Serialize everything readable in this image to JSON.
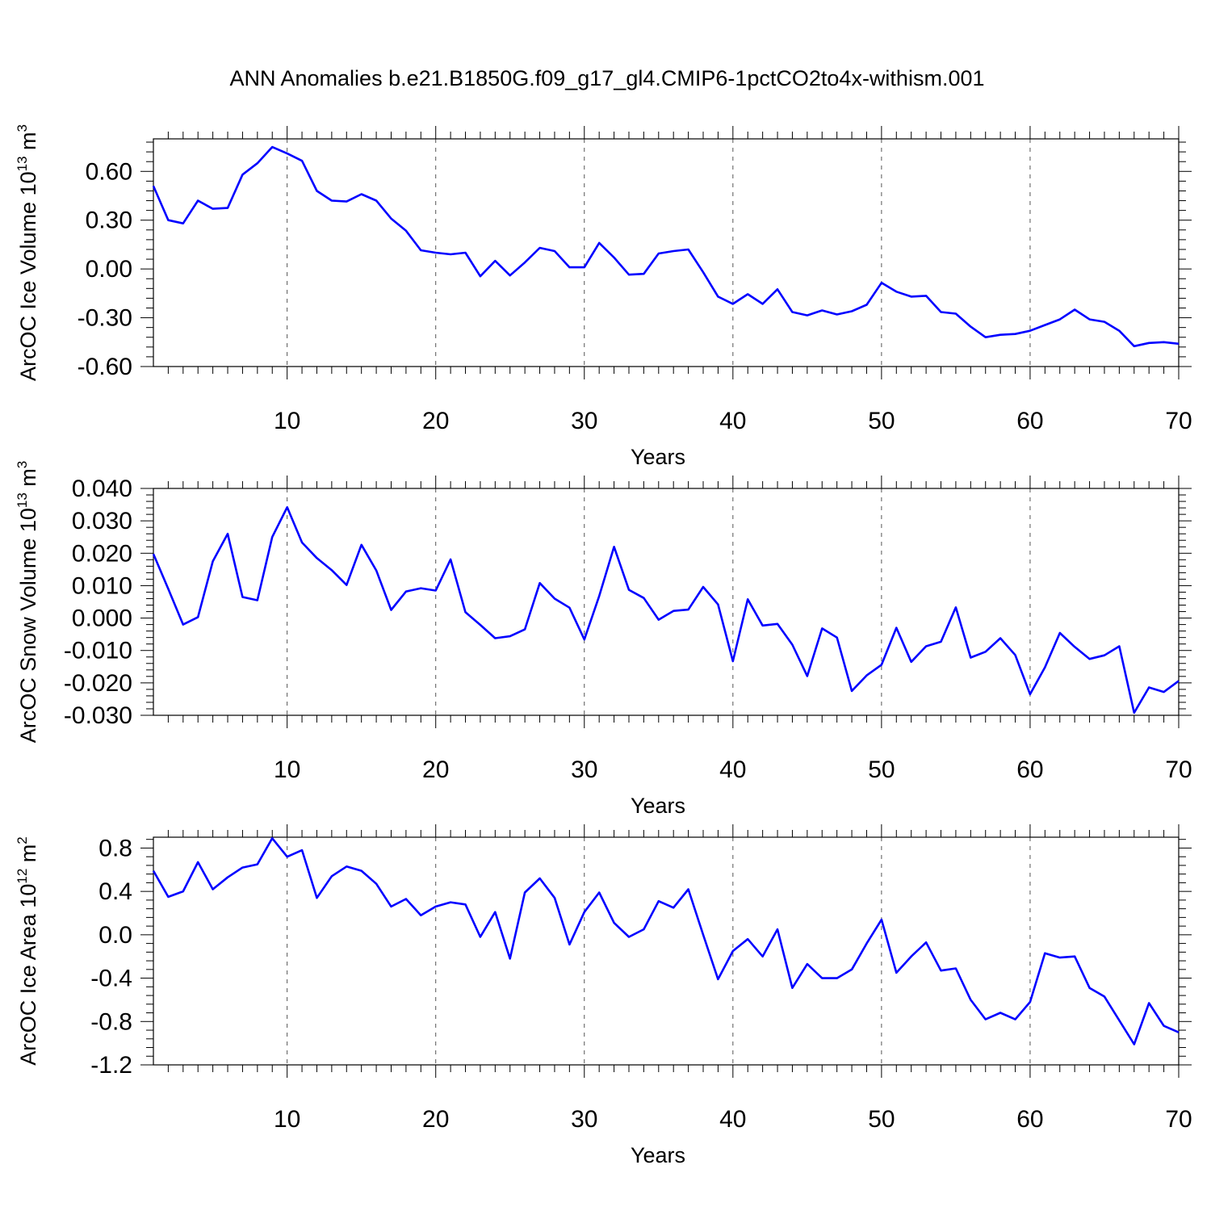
{
  "figure_title": "ANN Anomalies b.e21.B1850G.f09_g17_gl4.CMIP6-1pctCO2to4x-withism.001",
  "colors": {
    "series": "#0000ff",
    "grid": "#555555"
  },
  "chart_data": [
    {
      "type": "line",
      "xlabel": "Years",
      "ylabel": {
        "text": "ArcOC Ice Volume 10",
        "sup": "13",
        "unit": " m",
        "unit_sup": "3"
      },
      "xlim": [
        1,
        70
      ],
      "ylim": [
        -0.6,
        0.8
      ],
      "xticks": [
        10,
        20,
        30,
        40,
        50,
        60,
        70
      ],
      "yticks": [
        -0.6,
        -0.3,
        0.0,
        0.3,
        0.6
      ],
      "ytick_labels": [
        "-0.60",
        "-0.30",
        "0.00",
        "0.30",
        "0.60"
      ],
      "grid": "vertical dashed at major x ticks",
      "x": [
        1,
        2,
        3,
        4,
        5,
        6,
        7,
        8,
        9,
        10,
        11,
        12,
        13,
        14,
        15,
        16,
        17,
        18,
        19,
        20,
        21,
        22,
        23,
        24,
        25,
        26,
        27,
        28,
        29,
        30,
        31,
        32,
        33,
        34,
        35,
        36,
        37,
        38,
        39,
        40,
        41,
        42,
        43,
        44,
        45,
        46,
        47,
        48,
        49,
        50,
        51,
        52,
        53,
        54,
        55,
        56,
        57,
        58,
        59,
        60,
        61,
        62,
        63,
        64,
        65,
        66,
        67,
        68,
        69,
        70
      ],
      "series": [
        {
          "values": [
            0.51,
            0.3,
            0.28,
            0.42,
            0.37,
            0.375,
            0.58,
            0.65,
            0.75,
            0.71,
            0.665,
            0.48,
            0.42,
            0.415,
            0.46,
            0.42,
            0.31,
            0.235,
            0.115,
            0.1,
            0.09,
            0.1,
            -0.045,
            0.05,
            -0.04,
            0.04,
            0.13,
            0.11,
            0.01,
            0.01,
            0.16,
            0.07,
            -0.035,
            -0.03,
            0.095,
            0.11,
            0.12,
            -0.02,
            -0.17,
            -0.215,
            -0.155,
            -0.215,
            -0.125,
            -0.265,
            -0.285,
            -0.255,
            -0.28,
            -0.26,
            -0.22,
            -0.085,
            -0.14,
            -0.17,
            -0.165,
            -0.265,
            -0.275,
            -0.355,
            -0.42,
            -0.405,
            -0.4,
            -0.38,
            -0.345,
            -0.31,
            -0.25,
            -0.31,
            -0.325,
            -0.38,
            -0.475,
            -0.455,
            -0.45,
            -0.46
          ]
        }
      ]
    },
    {
      "type": "line",
      "xlabel": "Years",
      "ylabel": {
        "text": "ArcOC Snow Volume 10",
        "sup": "13",
        "unit": " m",
        "unit_sup": "3"
      },
      "xlim": [
        1,
        70
      ],
      "ylim": [
        -0.03,
        0.04
      ],
      "xticks": [
        10,
        20,
        30,
        40,
        50,
        60,
        70
      ],
      "yticks": [
        -0.03,
        -0.02,
        -0.01,
        0.0,
        0.01,
        0.02,
        0.03,
        0.04
      ],
      "ytick_labels": [
        "-0.030",
        "-0.020",
        "-0.010",
        "0.000",
        "0.010",
        "0.020",
        "0.030",
        "0.040"
      ],
      "grid": "vertical dashed at major x ticks",
      "x": [
        1,
        2,
        3,
        4,
        5,
        6,
        7,
        8,
        9,
        10,
        11,
        12,
        13,
        14,
        15,
        16,
        17,
        18,
        19,
        20,
        21,
        22,
        23,
        24,
        25,
        26,
        27,
        28,
        29,
        30,
        31,
        32,
        33,
        34,
        35,
        36,
        37,
        38,
        39,
        40,
        41,
        42,
        43,
        44,
        45,
        46,
        47,
        48,
        49,
        50,
        51,
        52,
        53,
        54,
        55,
        56,
        57,
        58,
        59,
        60,
        61,
        62,
        63,
        64,
        65,
        66,
        67,
        68,
        69,
        70
      ],
      "series": [
        {
          "values": [
            0.0198,
            0.009,
            -0.002,
            0.0003,
            0.0175,
            0.026,
            0.0065,
            0.0055,
            0.025,
            0.0342,
            0.0233,
            0.0185,
            0.0148,
            0.0102,
            0.0226,
            0.0147,
            0.0025,
            0.0082,
            0.0092,
            0.0085,
            0.0181,
            0.0018,
            -0.0021,
            -0.0062,
            -0.0056,
            -0.0035,
            0.0108,
            0.006,
            0.0032,
            -0.0066,
            0.0068,
            0.022,
            0.0087,
            0.0062,
            -0.0005,
            0.0022,
            0.0026,
            0.0096,
            0.0042,
            -0.0133,
            0.0058,
            -0.0023,
            -0.0018,
            -0.0082,
            -0.0179,
            -0.0032,
            -0.006,
            -0.0225,
            -0.0177,
            -0.0144,
            -0.003,
            -0.0135,
            -0.0087,
            -0.0073,
            0.0033,
            -0.0122,
            -0.0104,
            -0.0062,
            -0.0114,
            -0.0235,
            -0.0152,
            -0.0046,
            -0.0089,
            -0.0126,
            -0.0115,
            -0.0087,
            -0.0292,
            -0.0214,
            -0.0228,
            -0.0194
          ]
        }
      ]
    },
    {
      "type": "line",
      "xlabel": "Years",
      "ylabel": {
        "text": "ArcOC Ice Area 10",
        "sup": "12",
        "unit": " m",
        "unit_sup": "2"
      },
      "xlim": [
        1,
        70
      ],
      "ylim": [
        -1.2,
        0.9
      ],
      "xticks": [
        10,
        20,
        30,
        40,
        50,
        60,
        70
      ],
      "yticks": [
        -1.2,
        -0.8,
        -0.4,
        0.0,
        0.4,
        0.8
      ],
      "ytick_labels": [
        "-1.2",
        "-0.8",
        "-0.4",
        "0.0",
        "0.4",
        "0.8"
      ],
      "grid": "vertical dashed at major x ticks",
      "x": [
        1,
        2,
        3,
        4,
        5,
        6,
        7,
        8,
        9,
        10,
        11,
        12,
        13,
        14,
        15,
        16,
        17,
        18,
        19,
        20,
        21,
        22,
        23,
        24,
        25,
        26,
        27,
        28,
        29,
        30,
        31,
        32,
        33,
        34,
        35,
        36,
        37,
        38,
        39,
        40,
        41,
        42,
        43,
        44,
        45,
        46,
        47,
        48,
        49,
        50,
        51,
        52,
        53,
        54,
        55,
        56,
        57,
        58,
        59,
        60,
        61,
        62,
        63,
        64,
        65,
        66,
        67,
        68,
        69,
        70
      ],
      "series": [
        {
          "values": [
            0.59,
            0.35,
            0.4,
            0.67,
            0.42,
            0.53,
            0.62,
            0.65,
            0.89,
            0.72,
            0.78,
            0.34,
            0.54,
            0.63,
            0.59,
            0.47,
            0.26,
            0.33,
            0.18,
            0.26,
            0.3,
            0.28,
            -0.02,
            0.21,
            -0.22,
            0.39,
            0.52,
            0.34,
            -0.09,
            0.21,
            0.39,
            0.11,
            -0.02,
            0.05,
            0.31,
            0.25,
            0.42,
            0.0,
            -0.41,
            -0.15,
            -0.04,
            -0.2,
            0.05,
            -0.49,
            -0.27,
            -0.4,
            -0.4,
            -0.32,
            -0.08,
            0.14,
            -0.35,
            -0.2,
            -0.07,
            -0.33,
            -0.31,
            -0.6,
            -0.78,
            -0.72,
            -0.78,
            -0.62,
            -0.17,
            -0.21,
            -0.2,
            -0.49,
            -0.57,
            -0.79,
            -1.01,
            -0.63,
            -0.84,
            -0.9
          ]
        }
      ]
    }
  ]
}
